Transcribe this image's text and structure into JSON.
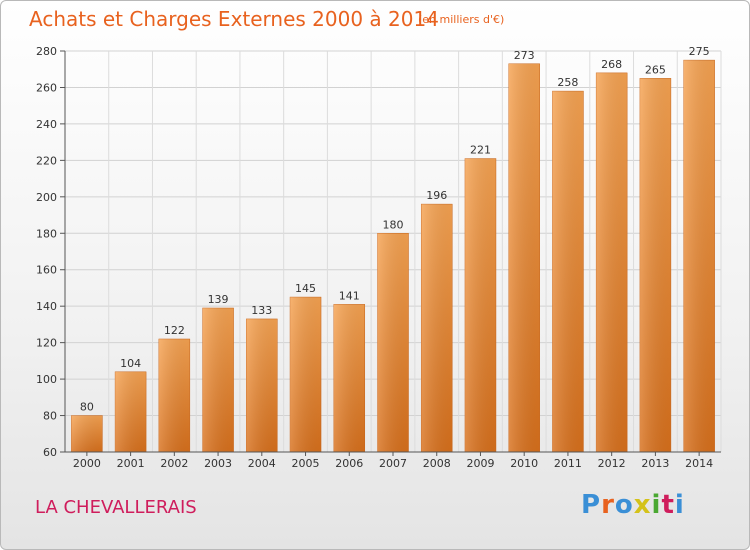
{
  "chart_data": {
    "type": "bar",
    "title": "Achats et Charges Externes 2000 à 2014",
    "subtitle": "(en milliers d'€)",
    "categories": [
      "2000",
      "2001",
      "2002",
      "2003",
      "2004",
      "2005",
      "2006",
      "2007",
      "2008",
      "2009",
      "2010",
      "2011",
      "2012",
      "2013",
      "2014"
    ],
    "values": [
      80,
      104,
      122,
      139,
      133,
      145,
      141,
      180,
      196,
      221,
      273,
      258,
      268,
      265,
      275
    ],
    "ylim": [
      60,
      280
    ],
    "yticks": [
      60,
      80,
      100,
      120,
      140,
      160,
      180,
      200,
      220,
      240,
      260,
      280
    ],
    "xlabel": "",
    "ylabel": "",
    "grid": true,
    "bar_color": "#f0923a",
    "bar_color_dark": "#d8701c",
    "title_color": "#e8621f"
  },
  "footer": {
    "commune": "LA CHEVALLERAIS",
    "brand": "Proxiti",
    "brand_colors": [
      "#3a8fd6",
      "#e8621f",
      "#3a8fd6",
      "#d4c21a",
      "#4aa832",
      "#cf1d5c",
      "#3a8fd6"
    ]
  }
}
